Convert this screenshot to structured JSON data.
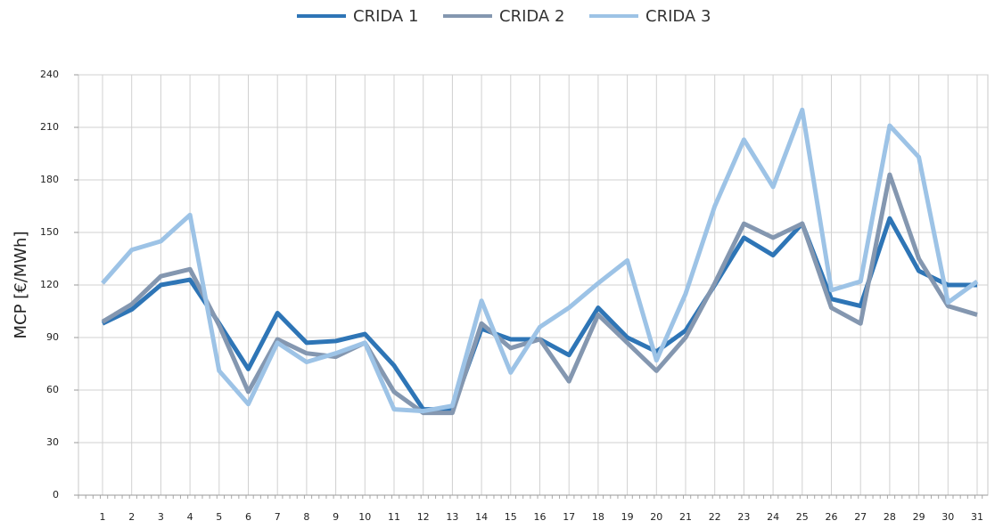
{
  "chart_data": {
    "type": "line",
    "y_label": "MCP [€/MWh]",
    "categories": [
      "1",
      "2",
      "3",
      "4",
      "5",
      "6",
      "7",
      "8",
      "9",
      "10",
      "11",
      "12",
      "13",
      "14",
      "15",
      "16",
      "17",
      "18",
      "19",
      "20",
      "21",
      "22",
      "23",
      "24",
      "25",
      "26",
      "27",
      "28",
      "29",
      "30",
      "31"
    ],
    "series": [
      {
        "name": "CRIDA 1",
        "color": "#2e75b6",
        "values": [
          98,
          106,
          120,
          123,
          98,
          72,
          104,
          87,
          88,
          92,
          74,
          49,
          49,
          95,
          89,
          89,
          80,
          107,
          90,
          82,
          94,
          120,
          147,
          137,
          155,
          112,
          108,
          158,
          128,
          120,
          120
        ]
      },
      {
        "name": "CRIDA 2",
        "color": "#8497b0",
        "values": [
          99,
          109,
          125,
          129,
          97,
          59,
          89,
          81,
          79,
          87,
          59,
          47,
          47,
          98,
          84,
          89,
          65,
          103,
          87,
          71,
          90,
          121,
          155,
          147,
          155,
          107,
          98,
          183,
          135,
          108,
          103
        ]
      },
      {
        "name": "CRIDA 3",
        "color": "#9dc3e6",
        "values": [
          121,
          140,
          145,
          160,
          71,
          52,
          87,
          76,
          81,
          87,
          49,
          48,
          51,
          111,
          70,
          96,
          107,
          121,
          134,
          77,
          115,
          165,
          203,
          176,
          220,
          117,
          122,
          211,
          193,
          110,
          122
        ]
      }
    ],
    "ylim": [
      0,
      240
    ],
    "yticks": [
      0,
      30,
      60,
      90,
      120,
      150,
      180,
      210,
      240
    ],
    "grid": true
  }
}
